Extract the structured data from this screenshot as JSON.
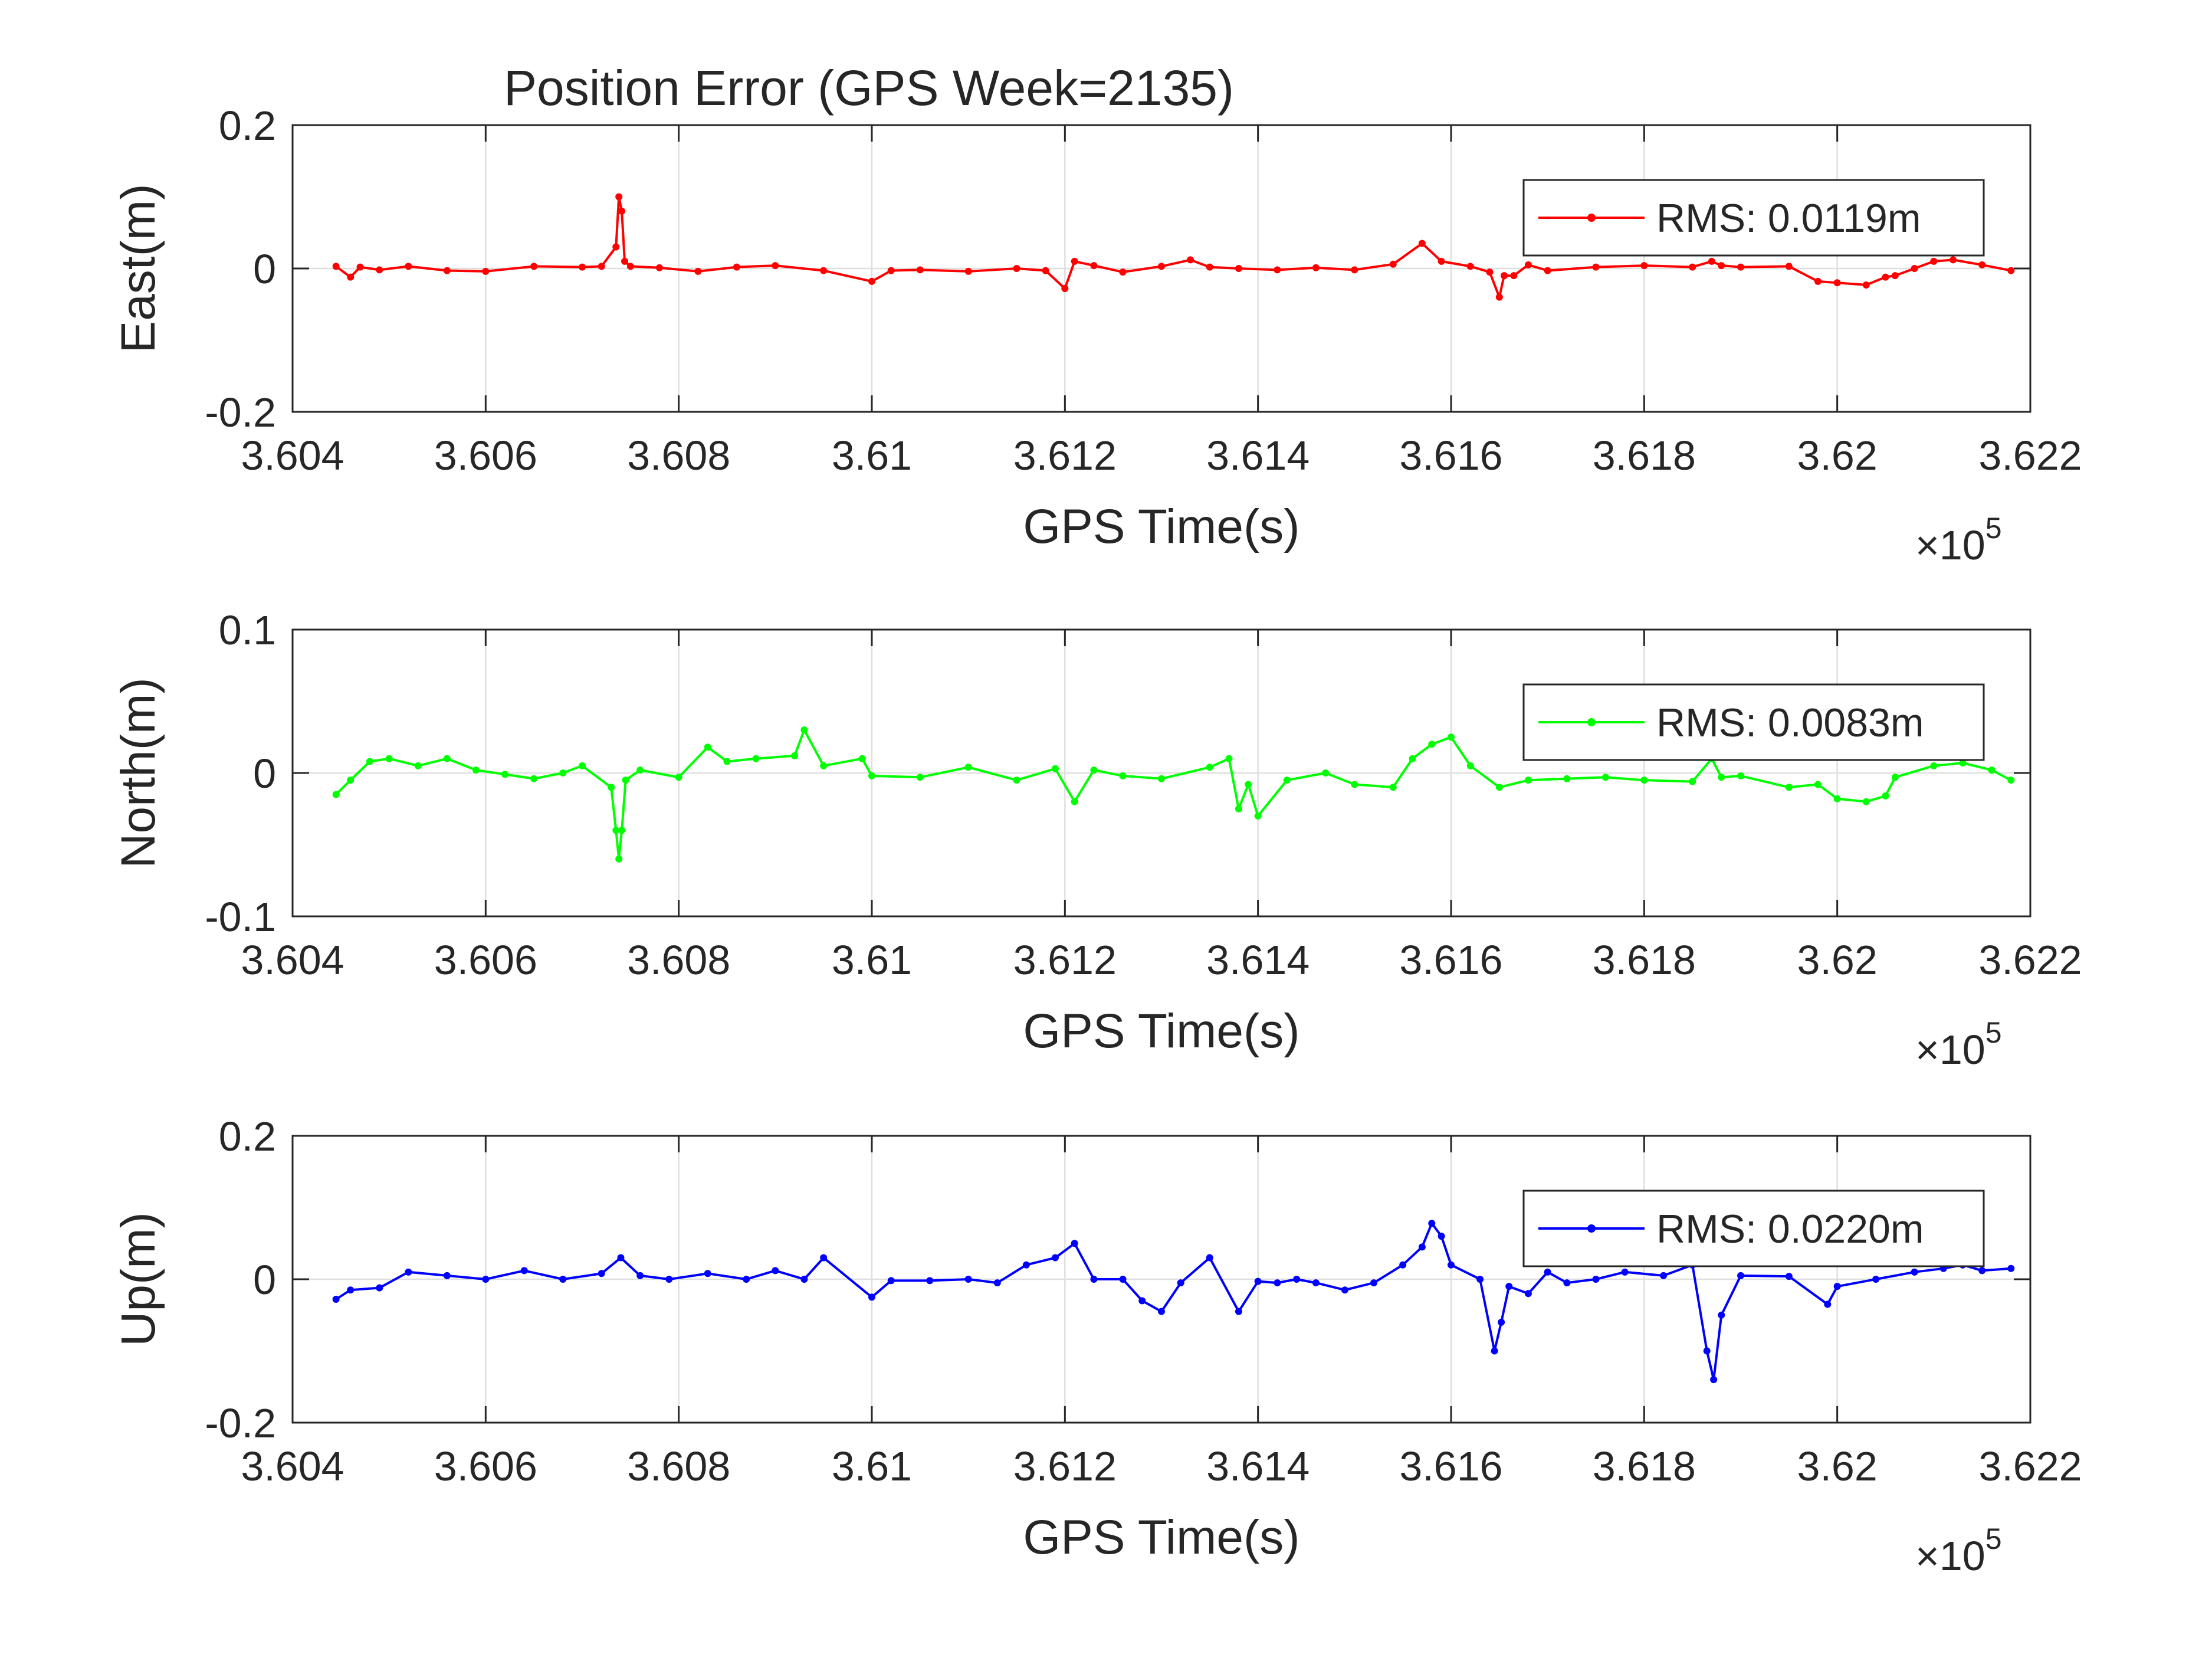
{
  "figure": {
    "title": "Position Error (GPS Week=2135)"
  },
  "chart_data": [
    {
      "type": "line",
      "title": "Position Error (GPS Week=2135)",
      "xlabel": "GPS Time(s)",
      "ylabel": "East(m)",
      "xlim": [
        360400,
        362200
      ],
      "ylim": [
        -0.2,
        0.2
      ],
      "x_exponent_label": "×10",
      "x_exponent": "5",
      "x_ticks": [
        360400,
        360600,
        360800,
        361000,
        361200,
        361400,
        361600,
        361800,
        362000,
        362200
      ],
      "x_tick_labels": [
        "3.604",
        "3.606",
        "3.608",
        "3.61",
        "3.612",
        "3.614",
        "3.616",
        "3.618",
        "3.62",
        "3.622"
      ],
      "y_ticks": [
        -0.2,
        0,
        0.2
      ],
      "y_tick_labels": [
        "-0.2",
        "0",
        "0.2"
      ],
      "grid": true,
      "legend_position": "top-right",
      "series": [
        {
          "name": "RMS: 0.0119m",
          "color": "#ff0000",
          "x": [
            360445,
            360460,
            360470,
            360490,
            360520,
            360560,
            360600,
            360650,
            360700,
            360720,
            360735,
            360738,
            360741,
            360744,
            360750,
            360780,
            360820,
            360860,
            360900,
            360950,
            361000,
            361020,
            361050,
            361100,
            361150,
            361180,
            361200,
            361210,
            361230,
            361260,
            361300,
            361330,
            361350,
            361380,
            361420,
            361460,
            361500,
            361540,
            361570,
            361590,
            361620,
            361640,
            361650,
            361655,
            361665,
            361680,
            361700,
            361750,
            361800,
            361850,
            361870,
            361880,
            361900,
            361950,
            361980,
            362000,
            362030,
            362050,
            362060,
            362080,
            362100,
            362120,
            362150,
            362180
          ],
          "y": [
            0.003,
            -0.012,
            0.002,
            -0.002,
            0.003,
            -0.003,
            -0.004,
            0.003,
            0.002,
            0.003,
            0.03,
            0.1,
            0.08,
            0.01,
            0.003,
            0.001,
            -0.004,
            0.002,
            0.004,
            -0.003,
            -0.018,
            -0.003,
            -0.002,
            -0.004,
            0.0,
            -0.003,
            -0.028,
            0.01,
            0.004,
            -0.005,
            0.003,
            0.012,
            0.002,
            0.0,
            -0.002,
            0.001,
            -0.002,
            0.006,
            0.035,
            0.01,
            0.003,
            -0.005,
            -0.04,
            -0.01,
            -0.01,
            0.005,
            -0.003,
            0.002,
            0.004,
            0.002,
            0.01,
            0.004,
            0.002,
            0.003,
            -0.018,
            -0.02,
            -0.023,
            -0.012,
            -0.01,
            0.0,
            0.01,
            0.012,
            0.005,
            -0.003
          ]
        }
      ]
    },
    {
      "type": "line",
      "xlabel": "GPS Time(s)",
      "ylabel": "North(m)",
      "xlim": [
        360400,
        362200
      ],
      "ylim": [
        -0.1,
        0.1
      ],
      "x_exponent_label": "×10",
      "x_exponent": "5",
      "x_ticks": [
        360400,
        360600,
        360800,
        361000,
        361200,
        361400,
        361600,
        361800,
        362000,
        362200
      ],
      "x_tick_labels": [
        "3.604",
        "3.606",
        "3.608",
        "3.61",
        "3.612",
        "3.614",
        "3.616",
        "3.618",
        "3.62",
        "3.622"
      ],
      "y_ticks": [
        -0.1,
        0,
        0.1
      ],
      "y_tick_labels": [
        "-0.1",
        "0",
        "0.1"
      ],
      "grid": true,
      "legend_position": "top-right",
      "series": [
        {
          "name": "RMS: 0.0083m",
          "color": "#00ff00",
          "x": [
            360445,
            360460,
            360480,
            360500,
            360530,
            360560,
            360590,
            360620,
            360650,
            360680,
            360700,
            360730,
            360735,
            360738,
            360741,
            360745,
            360760,
            360800,
            360830,
            360850,
            360880,
            360920,
            360930,
            360950,
            360990,
            361000,
            361050,
            361100,
            361150,
            361190,
            361210,
            361230,
            361260,
            361300,
            361350,
            361370,
            361380,
            361390,
            361400,
            361430,
            361470,
            361500,
            361540,
            361560,
            361580,
            361600,
            361620,
            361650,
            361680,
            361720,
            361760,
            361800,
            361850,
            361870,
            361880,
            361900,
            361950,
            361980,
            362000,
            362030,
            362050,
            362060,
            362100,
            362130,
            362160,
            362180
          ],
          "y": [
            -0.015,
            -0.005,
            0.008,
            0.01,
            0.005,
            0.01,
            0.002,
            -0.001,
            -0.004,
            0.0,
            0.005,
            -0.01,
            -0.04,
            -0.06,
            -0.04,
            -0.005,
            0.002,
            -0.003,
            0.018,
            0.008,
            0.01,
            0.012,
            0.03,
            0.005,
            0.01,
            -0.002,
            -0.003,
            0.004,
            -0.005,
            0.003,
            -0.02,
            0.002,
            -0.002,
            -0.004,
            0.004,
            0.01,
            -0.025,
            -0.008,
            -0.03,
            -0.005,
            0.0,
            -0.008,
            -0.01,
            0.01,
            0.02,
            0.025,
            0.005,
            -0.01,
            -0.005,
            -0.004,
            -0.003,
            -0.005,
            -0.006,
            0.01,
            -0.003,
            -0.002,
            -0.01,
            -0.008,
            -0.018,
            -0.02,
            -0.016,
            -0.003,
            0.005,
            0.007,
            0.002,
            -0.005
          ]
        }
      ]
    },
    {
      "type": "line",
      "xlabel": "GPS Time(s)",
      "ylabel": "Up(m)",
      "xlim": [
        360400,
        362200
      ],
      "ylim": [
        -0.2,
        0.2
      ],
      "x_exponent_label": "×10",
      "x_exponent": "5",
      "x_ticks": [
        360400,
        360600,
        360800,
        361000,
        361200,
        361400,
        361600,
        361800,
        362000,
        362200
      ],
      "x_tick_labels": [
        "3.604",
        "3.606",
        "3.608",
        "3.61",
        "3.612",
        "3.614",
        "3.616",
        "3.618",
        "3.62",
        "3.622"
      ],
      "y_ticks": [
        -0.2,
        0,
        0.2
      ],
      "y_tick_labels": [
        "-0.2",
        "0",
        "0.2"
      ],
      "grid": true,
      "legend_position": "top-right",
      "series": [
        {
          "name": "RMS: 0.0220m",
          "color": "#0000ff",
          "x": [
            360445,
            360460,
            360490,
            360520,
            360560,
            360600,
            360640,
            360680,
            360720,
            360740,
            360760,
            360790,
            360830,
            360870,
            360900,
            360930,
            360950,
            361000,
            361020,
            361060,
            361100,
            361130,
            361160,
            361190,
            361210,
            361230,
            361260,
            361280,
            361300,
            361320,
            361350,
            361380,
            361400,
            361420,
            361440,
            361460,
            361490,
            361520,
            361550,
            361570,
            361580,
            361590,
            361600,
            361630,
            361645,
            361652,
            361660,
            361680,
            361700,
            361720,
            361750,
            361780,
            361820,
            361850,
            361865,
            361872,
            361880,
            361900,
            361950,
            361990,
            362000,
            362040,
            362080,
            362110,
            362130,
            362150,
            362180
          ],
          "y": [
            -0.028,
            -0.015,
            -0.012,
            0.01,
            0.005,
            0.0,
            0.012,
            0.0,
            0.008,
            0.03,
            0.005,
            0.0,
            0.008,
            0.0,
            0.012,
            0.0,
            0.03,
            -0.025,
            -0.002,
            -0.002,
            0.0,
            -0.005,
            0.02,
            0.03,
            0.05,
            0.0,
            0.0,
            -0.03,
            -0.045,
            -0.005,
            0.03,
            -0.045,
            -0.003,
            -0.005,
            0.0,
            -0.005,
            -0.015,
            -0.005,
            0.02,
            0.045,
            0.078,
            0.06,
            0.02,
            0.0,
            -0.1,
            -0.06,
            -0.01,
            -0.02,
            0.01,
            -0.005,
            0.0,
            0.01,
            0.005,
            0.02,
            -0.1,
            -0.14,
            -0.05,
            0.005,
            0.004,
            -0.035,
            -0.01,
            0.0,
            0.01,
            0.015,
            0.02,
            0.012,
            0.015
          ]
        }
      ]
    }
  ]
}
